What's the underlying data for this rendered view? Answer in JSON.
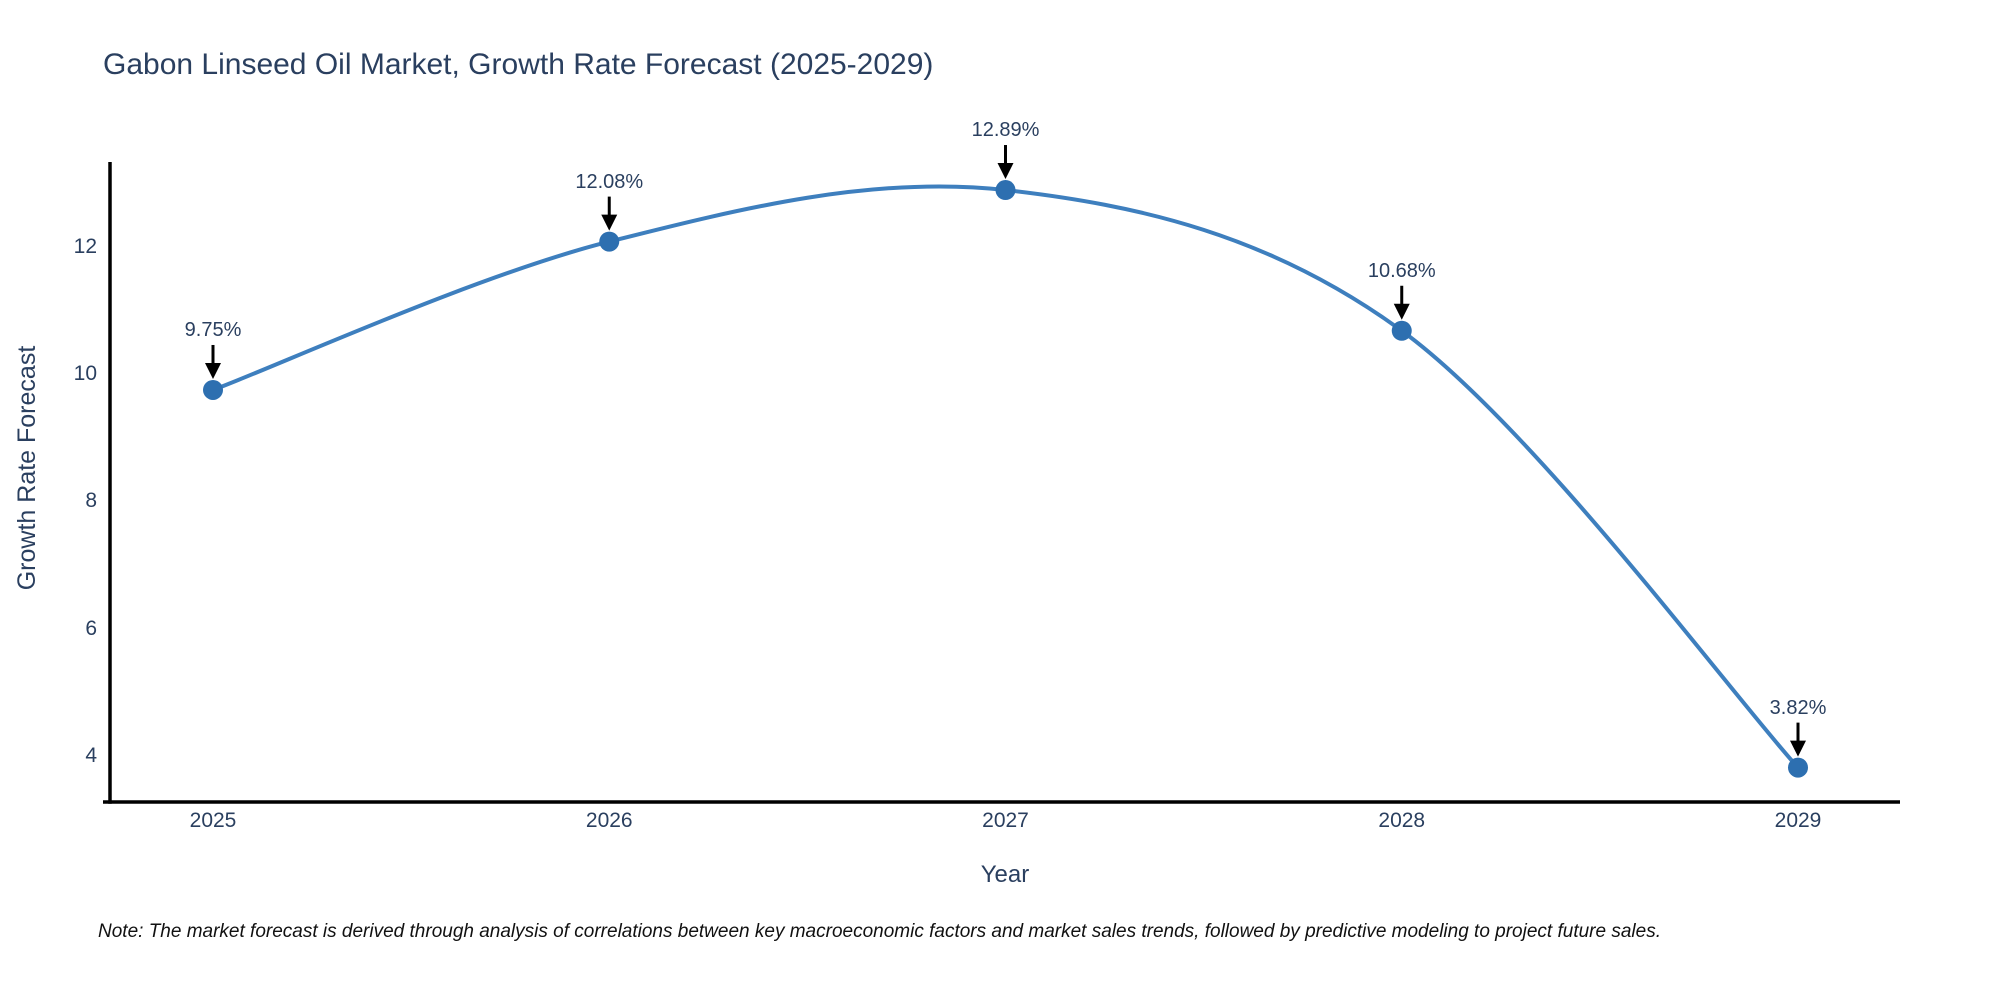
{
  "title": "Gabon Linseed Oil Market, Growth Rate Forecast (2025-2029)",
  "note": "Note: The market forecast is derived through analysis of correlations between key macroeconomic factors and market sales trends, followed by predictive modeling to project future sales.",
  "chart_data": {
    "type": "line",
    "title": "Gabon Linseed Oil Market, Growth Rate Forecast (2025-2029)",
    "xlabel": "Year",
    "ylabel": "Growth Rate Forecast",
    "x": [
      "2025",
      "2026",
      "2027",
      "2028",
      "2029"
    ],
    "values": [
      9.75,
      12.08,
      12.89,
      10.68,
      3.82
    ],
    "point_labels": [
      "9.75%",
      "12.08%",
      "12.89%",
      "10.68%",
      "3.82%"
    ],
    "y_ticks": [
      4,
      6,
      8,
      10,
      12
    ],
    "y_tick_labels": [
      "4",
      "6",
      "8",
      "10",
      "12"
    ],
    "ylim": [
      3.28,
      13.33
    ],
    "line_shape": "spline",
    "grid": false,
    "legend": "none",
    "colors": {
      "line": "#3e7fbe",
      "marker": "#2d6fb0",
      "arrow": "#000000",
      "axis": "#000000",
      "text": "#2a3f5f"
    }
  }
}
